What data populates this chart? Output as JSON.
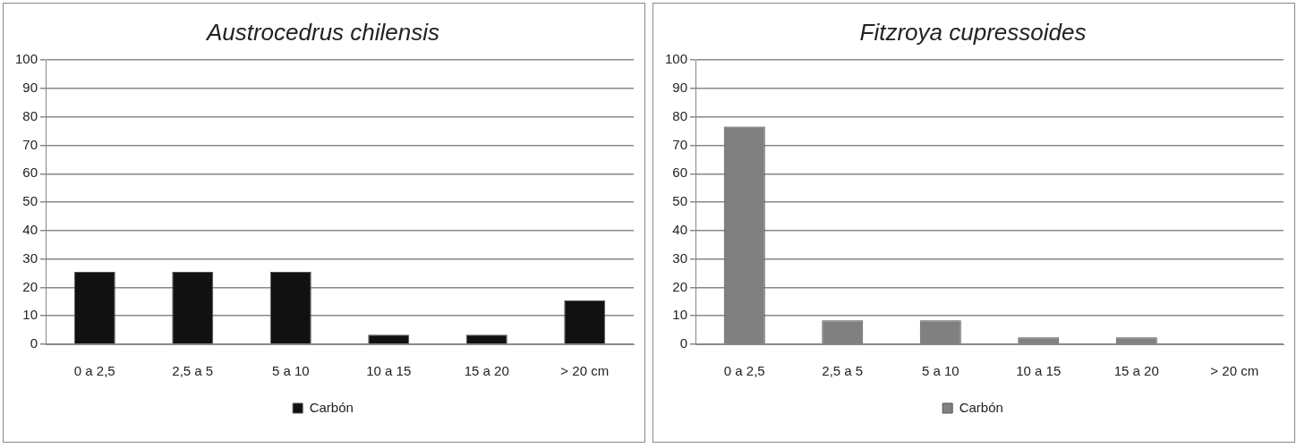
{
  "chart_data": [
    {
      "type": "bar",
      "title": "Austrocedrus chilensis",
      "categories": [
        "0 a 2,5",
        "2,5 a 5",
        "5 a 10",
        "10 a 15",
        "15 a 20",
        "> 20 cm"
      ],
      "series": [
        {
          "name": "Carbón",
          "color": "#111111",
          "values": [
            25.5,
            25.5,
            25.5,
            3.4,
            3.4,
            15.4
          ]
        }
      ],
      "ylim": [
        0,
        100
      ],
      "yticks": [
        0,
        10,
        20,
        30,
        40,
        50,
        60,
        70,
        80,
        90,
        100
      ],
      "grid": "y",
      "legend": "bottom"
    },
    {
      "type": "bar",
      "title": "Fitzroya cupressoides",
      "categories": [
        "0 a 2,5",
        "2,5 a 5",
        "5 a 10",
        "10 a 15",
        "15 a 20",
        "> 20 cm"
      ],
      "series": [
        {
          "name": "Carbón",
          "color": "#808080",
          "values": [
            76.6,
            8.4,
            8.4,
            2.4,
            2.4,
            0
          ]
        }
      ],
      "ylim": [
        0,
        100
      ],
      "yticks": [
        0,
        10,
        20,
        30,
        40,
        50,
        60,
        70,
        80,
        90,
        100
      ],
      "grid": "y",
      "legend": "bottom"
    }
  ]
}
